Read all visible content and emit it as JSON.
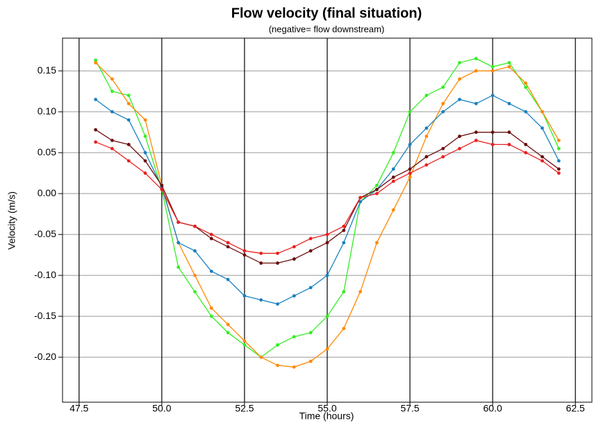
{
  "chart_data": {
    "type": "line",
    "title": "Flow velocity (final situation)",
    "subtitle": "(negative= flow downstream)",
    "x_label": "Time (hours)",
    "y_label": "Velocity (m/s)",
    "x": [
      48,
      48.5,
      49,
      49.5,
      50,
      50.5,
      51,
      51.5,
      52,
      52.5,
      53,
      53.5,
      54,
      54.5,
      55,
      55.5,
      56,
      56.5,
      57,
      57.5,
      58,
      58.5,
      59,
      59.5,
      60,
      60.5,
      61,
      61.5,
      62
    ],
    "series": [
      {
        "color": "#33ee22",
        "values": [
          0.163,
          0.125,
          0.12,
          0.07,
          0.005,
          -0.09,
          -0.12,
          -0.15,
          -0.17,
          -0.185,
          -0.2,
          -0.185,
          -0.175,
          -0.17,
          -0.15,
          -0.12,
          -0.01,
          0.01,
          0.05,
          0.1,
          0.12,
          0.13,
          0.16,
          0.165,
          0.155,
          0.16,
          0.13,
          0.1,
          0.055
        ]
      },
      {
        "color": "#ff8800",
        "values": [
          0.16,
          0.14,
          0.11,
          0.09,
          0.01,
          -0.06,
          -0.1,
          -0.14,
          -0.16,
          -0.18,
          -0.2,
          -0.21,
          -0.212,
          -0.205,
          -0.19,
          -0.165,
          -0.12,
          -0.06,
          -0.02,
          0.02,
          0.07,
          0.11,
          0.14,
          0.15,
          0.15,
          0.155,
          0.135,
          0.1,
          0.065
        ]
      },
      {
        "color": "#1a80c0",
        "values": [
          0.115,
          0.1,
          0.09,
          0.05,
          0.008,
          -0.06,
          -0.07,
          -0.095,
          -0.105,
          -0.125,
          -0.13,
          -0.135,
          -0.125,
          -0.115,
          -0.1,
          -0.06,
          -0.01,
          0.005,
          0.03,
          0.06,
          0.08,
          0.1,
          0.115,
          0.11,
          0.12,
          0.11,
          0.1,
          0.08,
          0.04
        ]
      },
      {
        "color": "#6b0d0d",
        "values": [
          0.078,
          0.065,
          0.06,
          0.04,
          0.01,
          -0.035,
          -0.04,
          -0.055,
          -0.065,
          -0.075,
          -0.085,
          -0.085,
          -0.08,
          -0.07,
          -0.06,
          -0.045,
          -0.005,
          0.005,
          0.02,
          0.03,
          0.045,
          0.055,
          0.07,
          0.075,
          0.075,
          0.075,
          0.06,
          0.045,
          0.03
        ]
      },
      {
        "color": "#e82020",
        "values": [
          0.063,
          0.055,
          0.04,
          0.025,
          0.005,
          -0.035,
          -0.04,
          -0.05,
          -0.06,
          -0.07,
          -0.073,
          -0.073,
          -0.065,
          -0.055,
          -0.05,
          -0.04,
          -0.005,
          0,
          0.015,
          0.025,
          0.035,
          0.045,
          0.055,
          0.065,
          0.06,
          0.06,
          0.05,
          0.04,
          0.025
        ]
      }
    ],
    "xlim": [
      47.0,
      63.0
    ],
    "ylim": [
      -0.255,
      0.19
    ],
    "xticks": [
      {
        "value": 47.5,
        "label": "47.5"
      },
      {
        "value": 50,
        "label": "50.0"
      },
      {
        "value": 52.5,
        "label": "52.5"
      },
      {
        "value": 55,
        "label": "55.0"
      },
      {
        "value": 57.5,
        "label": "57.5"
      },
      {
        "value": 60,
        "label": "60.0"
      },
      {
        "value": 62.5,
        "label": "62.5"
      }
    ],
    "yticks": [
      {
        "value": -0.2,
        "label": "-0.20"
      },
      -0.15,
      {
        "value": -0.1,
        "label": "-0.10"
      },
      -0.05,
      {
        "value": 0,
        "label": "0.00"
      },
      0.05,
      {
        "value": 0.1,
        "label": "0.10"
      },
      0.15
    ],
    "grid": true
  }
}
